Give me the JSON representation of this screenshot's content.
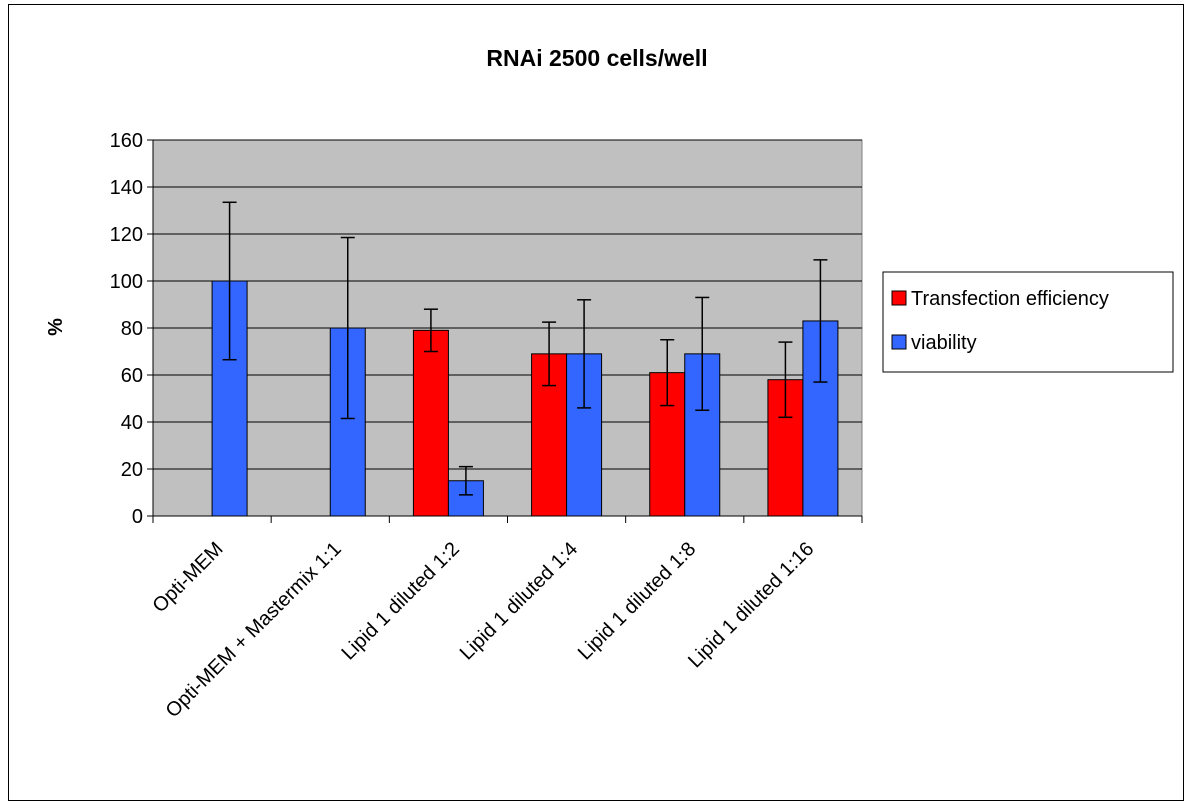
{
  "chart_data": {
    "type": "bar",
    "title": "RNAi 2500 cells/well",
    "xlabel": "",
    "ylabel": "%",
    "ylim": [
      0,
      160
    ],
    "yticks": [
      0,
      20,
      40,
      60,
      80,
      100,
      120,
      140,
      160
    ],
    "grid": true,
    "legend_position": "right",
    "categories": [
      "Opti-MEM",
      "Opti-MEM + Mastermix 1:1",
      "Lipid 1 diluted 1:2",
      "Lipid 1 diluted 1:4",
      "Lipid 1 diluted 1:8",
      "Lipid 1 diluted 1:16"
    ],
    "series": [
      {
        "name": "Transfection efficiency",
        "color": "#ff0000",
        "values": [
          null,
          null,
          79,
          69,
          61,
          58
        ],
        "error": [
          null,
          null,
          9,
          13.5,
          14,
          16
        ]
      },
      {
        "name": "viability",
        "color": "#3366ff",
        "values": [
          100,
          80,
          15,
          69,
          69,
          83
        ],
        "error": [
          33.5,
          38.5,
          6,
          23,
          24,
          26
        ]
      }
    ],
    "plot_background": "#c0c0c0"
  }
}
